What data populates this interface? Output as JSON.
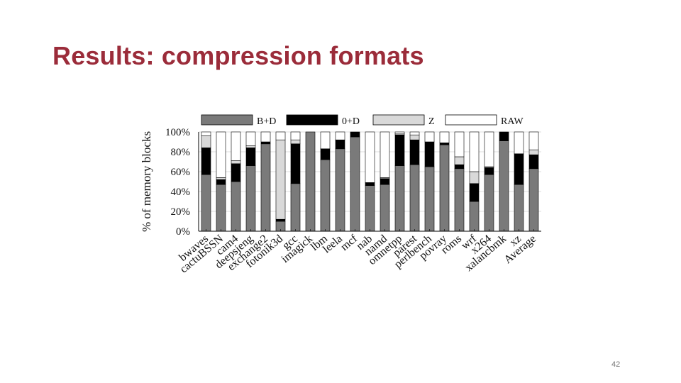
{
  "slide": {
    "title": "Results: compression formats",
    "page_number": "42"
  },
  "colors": {
    "title": "#9b2c3a",
    "B+D": "#7a7a7a",
    "0+D": "#000000",
    "Z": "#d9d9d9",
    "RAW": "#ffffff"
  },
  "chart_data": {
    "type": "bar",
    "stacked": true,
    "title": "",
    "xlabel": "",
    "ylabel": "% of memory blocks",
    "ylim": [
      0,
      100
    ],
    "yticks": [
      "0%",
      "20%",
      "40%",
      "60%",
      "80%",
      "100%"
    ],
    "legend_position": "top",
    "categories": [
      "bwaves",
      "cactuBSSN",
      "cam4",
      "deepsjeng",
      "exchange2",
      "fotonik3d",
      "gcc",
      "imagick",
      "lbm",
      "leela",
      "mcf",
      "nab",
      "namd",
      "omnetpp",
      "parest",
      "perlbench",
      "povray",
      "roms",
      "wrf",
      "x264",
      "xalancbmk",
      "xz",
      "Average"
    ],
    "series": [
      {
        "name": "B+D",
        "values": [
          57,
          47,
          50,
          66,
          88,
          10,
          48,
          100,
          72,
          83,
          95,
          46,
          47,
          66,
          67,
          65,
          87,
          63,
          30,
          57,
          91,
          47,
          63
        ]
      },
      {
        "name": "0+D",
        "values": [
          27,
          5,
          18,
          18,
          2,
          2,
          40,
          0,
          11,
          9,
          5,
          3,
          6,
          31,
          25,
          25,
          2,
          4,
          18,
          7,
          9,
          31,
          14
        ]
      },
      {
        "name": "Z",
        "values": [
          12,
          2,
          3,
          2,
          0,
          80,
          4,
          0,
          0,
          0,
          0,
          0,
          1,
          1,
          5,
          0,
          0,
          8,
          12,
          1,
          0,
          0,
          5
        ]
      },
      {
        "name": "RAW",
        "values": [
          4,
          46,
          29,
          14,
          10,
          8,
          8,
          0,
          17,
          8,
          0,
          51,
          46,
          2,
          3,
          10,
          11,
          25,
          40,
          35,
          0,
          22,
          18
        ]
      }
    ]
  }
}
